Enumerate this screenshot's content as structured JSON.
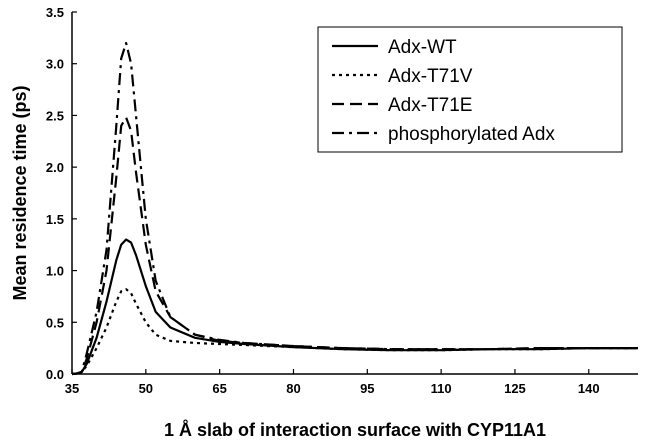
{
  "chart_data": {
    "type": "line",
    "xlabel": "1 Å slab of interaction surface with CYP11A1",
    "ylabel": "Mean residence time (ps)",
    "xlim": [
      35,
      150
    ],
    "ylim": [
      0,
      3.5
    ],
    "xticks": [
      "35",
      "50",
      "65",
      "80",
      "95",
      "110",
      "125",
      "140"
    ],
    "yticks": [
      "0.0",
      "0.5",
      "1.0",
      "1.5",
      "2.0",
      "2.5",
      "3.0",
      "3.5"
    ],
    "grid": false,
    "legend_position": "top-right",
    "series": [
      {
        "name": "Adx-WT",
        "dash": "solid",
        "points": [
          [
            35,
            0
          ],
          [
            36,
            0.005
          ],
          [
            37,
            0.02
          ],
          [
            38,
            0.1
          ],
          [
            40,
            0.35
          ],
          [
            42,
            0.7
          ],
          [
            44,
            1.1
          ],
          [
            45,
            1.25
          ],
          [
            46,
            1.3
          ],
          [
            47,
            1.27
          ],
          [
            48,
            1.15
          ],
          [
            50,
            0.85
          ],
          [
            52,
            0.6
          ],
          [
            55,
            0.45
          ],
          [
            60,
            0.35
          ],
          [
            65,
            0.31
          ],
          [
            70,
            0.29
          ],
          [
            80,
            0.26
          ],
          [
            90,
            0.24
          ],
          [
            100,
            0.23
          ],
          [
            110,
            0.23
          ],
          [
            120,
            0.24
          ],
          [
            130,
            0.24
          ],
          [
            140,
            0.25
          ],
          [
            150,
            0.25
          ]
        ]
      },
      {
        "name": "Adx-T71V",
        "dash": "dotted",
        "points": [
          [
            35,
            0
          ],
          [
            36,
            0.005
          ],
          [
            37,
            0.02
          ],
          [
            38,
            0.08
          ],
          [
            40,
            0.25
          ],
          [
            42,
            0.45
          ],
          [
            44,
            0.7
          ],
          [
            45,
            0.8
          ],
          [
            46,
            0.82
          ],
          [
            47,
            0.78
          ],
          [
            48,
            0.68
          ],
          [
            50,
            0.5
          ],
          [
            52,
            0.38
          ],
          [
            55,
            0.32
          ],
          [
            60,
            0.3
          ],
          [
            65,
            0.29
          ],
          [
            70,
            0.28
          ],
          [
            80,
            0.26
          ],
          [
            90,
            0.24
          ],
          [
            100,
            0.23
          ],
          [
            110,
            0.23
          ],
          [
            120,
            0.24
          ],
          [
            130,
            0.24
          ],
          [
            140,
            0.25
          ],
          [
            150,
            0.25
          ]
        ]
      },
      {
        "name": "Adx-T71E",
        "dash": "dashed",
        "points": [
          [
            35,
            0
          ],
          [
            36,
            0.005
          ],
          [
            37,
            0.02
          ],
          [
            38,
            0.15
          ],
          [
            40,
            0.5
          ],
          [
            42,
            1.0
          ],
          [
            44,
            1.9
          ],
          [
            45,
            2.4
          ],
          [
            46,
            2.48
          ],
          [
            47,
            2.35
          ],
          [
            48,
            1.95
          ],
          [
            50,
            1.25
          ],
          [
            52,
            0.8
          ],
          [
            55,
            0.55
          ],
          [
            60,
            0.38
          ],
          [
            65,
            0.32
          ],
          [
            70,
            0.3
          ],
          [
            80,
            0.27
          ],
          [
            90,
            0.25
          ],
          [
            100,
            0.24
          ],
          [
            110,
            0.24
          ],
          [
            120,
            0.24
          ],
          [
            130,
            0.25
          ],
          [
            140,
            0.25
          ],
          [
            150,
            0.25
          ]
        ]
      },
      {
        "name": "phosphorylated Adx",
        "dash": "dashdot",
        "points": [
          [
            35,
            0
          ],
          [
            36,
            0.005
          ],
          [
            37,
            0.02
          ],
          [
            38,
            0.2
          ],
          [
            40,
            0.6
          ],
          [
            42,
            1.2
          ],
          [
            44,
            2.4
          ],
          [
            45,
            3.05
          ],
          [
            46,
            3.2
          ],
          [
            47,
            3.0
          ],
          [
            48,
            2.5
          ],
          [
            50,
            1.5
          ],
          [
            52,
            0.9
          ],
          [
            55,
            0.55
          ],
          [
            60,
            0.38
          ],
          [
            65,
            0.33
          ],
          [
            70,
            0.3
          ],
          [
            80,
            0.27
          ],
          [
            90,
            0.25
          ],
          [
            100,
            0.24
          ],
          [
            110,
            0.24
          ],
          [
            120,
            0.24
          ],
          [
            130,
            0.25
          ],
          [
            140,
            0.25
          ],
          [
            150,
            0.25
          ]
        ]
      }
    ]
  }
}
